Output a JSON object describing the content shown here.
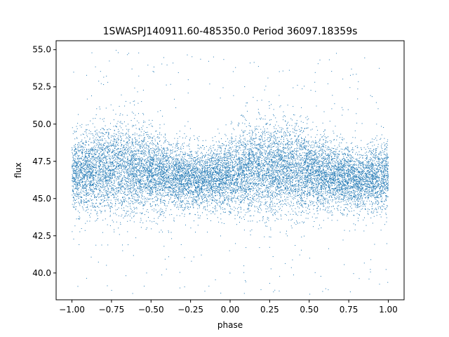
{
  "chart_data": {
    "type": "scatter",
    "title": "1SWASPJ140911.60-485350.0 Period 36097.18359s",
    "xlabel": "phase",
    "ylabel": "flux",
    "xlim": [
      -1.1,
      1.1
    ],
    "ylim": [
      38.2,
      55.6
    ],
    "xticks": [
      -1.0,
      -0.75,
      -0.5,
      -0.25,
      0.0,
      0.25,
      0.5,
      0.75,
      1.0
    ],
    "xtick_labels": [
      "−1.00",
      "−0.75",
      "−0.50",
      "−0.25",
      "0.00",
      "0.25",
      "0.50",
      "0.75",
      "1.00"
    ],
    "yticks": [
      40.0,
      42.5,
      45.0,
      47.5,
      50.0,
      52.5,
      55.0
    ],
    "ytick_labels": [
      "40.0",
      "42.5",
      "45.0",
      "47.5",
      "50.0",
      "52.5",
      "55.0"
    ],
    "grid": false,
    "marker_color": "#1f77b4",
    "series": [
      {
        "x_range": [
          -1.0,
          1.0
        ],
        "flux_median": 46.7,
        "flux_core_band": [
          44.0,
          49.5
        ],
        "flux_outlier_band": [
          38.5,
          55.1
        ],
        "modulation_period_in_phase": 1.0,
        "flux_peak_phases": [
          -0.7,
          0.3
        ],
        "flux_trough_phases": [
          -0.2,
          0.8
        ]
      }
    ]
  }
}
